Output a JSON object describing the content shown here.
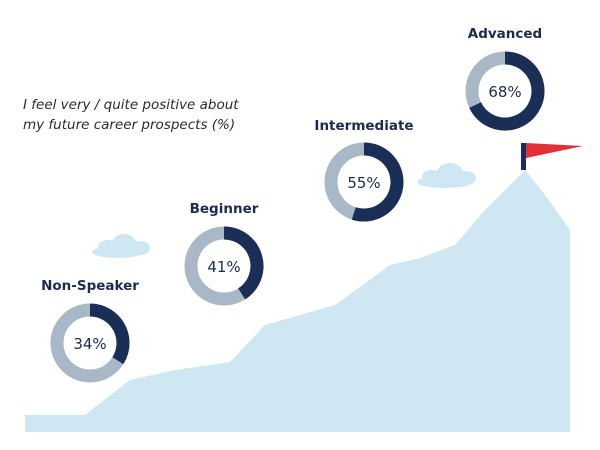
{
  "subtitle": {
    "line1": "I feel very / quite positive about",
    "line2": "my future career prospects (%)"
  },
  "colors": {
    "value_arc": "#1b2e55",
    "remainder_arc": "#a9b8c6",
    "mountain": "#cfe7f2",
    "cloud": "#cfe7f2",
    "flag": "#e0313a",
    "flag_pole": "#1b2e55",
    "label_text": "#1d2b4f"
  },
  "chart_data": {
    "type": "pie",
    "unit": "%",
    "categories": [
      "Non-Speaker",
      "Beginner",
      "Intermediate",
      "Advanced"
    ],
    "values": [
      34,
      41,
      55,
      68
    ],
    "value_labels": [
      "34%",
      "41%",
      "55%",
      "68%"
    ],
    "title": "",
    "subtitle": "I feel very / quite positive about my future career prospects (%)"
  }
}
